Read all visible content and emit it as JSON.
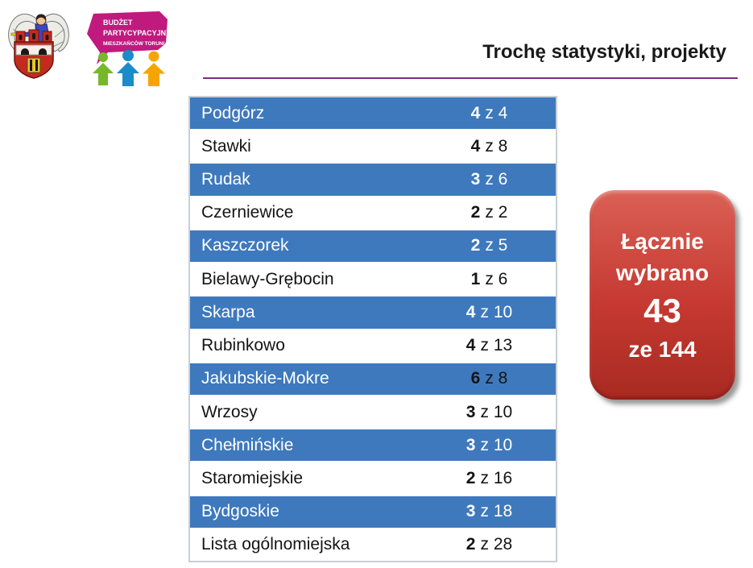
{
  "header": {
    "title": "Trochę statystyki, projekty",
    "logo_budget": {
      "line1": "BUDŻET",
      "line2": "PARTYCYPACYJNY",
      "line3": "MIESZKAŃCÓW TORUNIA"
    }
  },
  "table": {
    "rows": [
      {
        "district": "Podgórz",
        "selected": "4",
        "of": "z 4",
        "variant": "blue"
      },
      {
        "district": "Stawki",
        "selected": "4",
        "of": "z 8",
        "variant": "white"
      },
      {
        "district": "Rudak",
        "selected": "3",
        "of": "z 6",
        "variant": "blue"
      },
      {
        "district": "Czerniewice",
        "selected": "2",
        "of": "z 2",
        "variant": "white"
      },
      {
        "district": "Kaszczorek",
        "selected": "2",
        "of": "z 5",
        "variant": "blue"
      },
      {
        "district": "Bielawy-Grębocin",
        "selected": "1",
        "of": "z 6",
        "variant": "white"
      },
      {
        "district": "Skarpa",
        "selected": "4",
        "of": "z 10",
        "variant": "blue"
      },
      {
        "district": "Rubinkowo",
        "selected": "4",
        "of": "z 13",
        "variant": "white"
      },
      {
        "district": "Jakubskie-Mokre",
        "selected": "6",
        "of": "z 8",
        "variant": "blue",
        "value_dark": true
      },
      {
        "district": "Wrzosy",
        "selected": "3",
        "of": "z 10",
        "variant": "white"
      },
      {
        "district": "Chełmińskie",
        "selected": "3",
        "of": "z 10",
        "variant": "blue"
      },
      {
        "district": "Staromiejskie",
        "selected": "2",
        "of": "z 16",
        "variant": "white"
      },
      {
        "district": "Bydgoskie",
        "selected": "3",
        "of": "z 18",
        "variant": "blue"
      },
      {
        "district": "Lista ogólnomiejska",
        "selected": "2",
        "of": "z 28",
        "variant": "white"
      }
    ]
  },
  "badge": {
    "line1": "Łącznie",
    "line2": "wybrano",
    "number": "43",
    "line3": "ze 144"
  },
  "colors": {
    "row_blue": "#3E79BD",
    "table_border": "#C9CED5",
    "accent_line": "#7E2B85",
    "badge_light": "#DA6055",
    "badge_mid": "#C53931",
    "badge_dark": "#A82A21",
    "logo_magenta": "#C01A7E",
    "person_green": "#76B82A",
    "person_blue": "#1B8BCB",
    "person_orange": "#F6A500"
  }
}
